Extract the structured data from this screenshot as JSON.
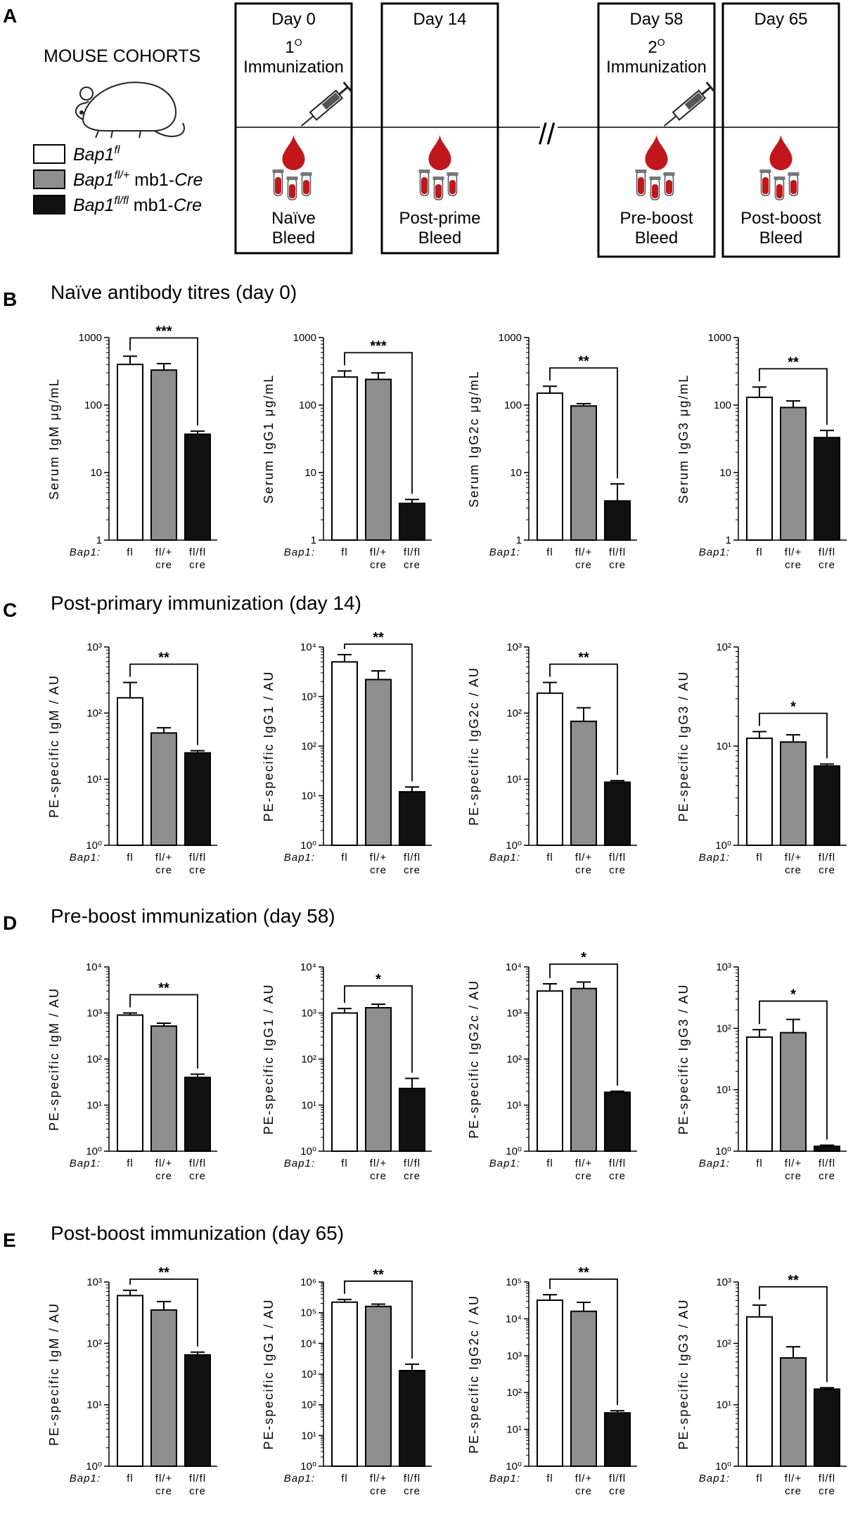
{
  "panel_a": {
    "letter": "A",
    "cohort_title": "MOUSE COHORTS",
    "legend": [
      {
        "base": "Bap1",
        "sup": "fl",
        "rest": "",
        "fill": "#ffffff"
      },
      {
        "base": "Bap1",
        "sup": "fl/+",
        "rest": " mb1-",
        "cre": "Cre",
        "fill": "#8e8e8e"
      },
      {
        "base": "Bap1",
        "sup": "fl/fl",
        "rest": " mb1-",
        "cre": "Cre",
        "fill": "#111111"
      }
    ],
    "timeline_break": "//",
    "timepoints": [
      {
        "day": "Day 0",
        "top_sup_num": "1",
        "top_sup": "O",
        "top_label": "Immunization",
        "bottom": [
          "Naïve",
          "Bleed"
        ],
        "syringe": true
      },
      {
        "day": "Day 14",
        "top_sup_num": "",
        "top_sup": "",
        "top_label": "",
        "bottom": [
          "Post-prime",
          "Bleed"
        ],
        "syringe": false
      },
      {
        "day": "Day 58",
        "top_sup_num": "2",
        "top_sup": "O",
        "top_label": "Immunization",
        "bottom": [
          "Pre-boost",
          "Bleed"
        ],
        "syringe": true
      },
      {
        "day": "Day 65",
        "top_sup_num": "",
        "top_sup": "",
        "top_label": "",
        "bottom": [
          "Post-boost",
          "Bleed"
        ],
        "syringe": false
      }
    ]
  },
  "sections": [
    {
      "letter": "B",
      "title": "Naïve antibody titres (day 0)"
    },
    {
      "letter": "C",
      "title": "Post-primary immunization (day 14)"
    },
    {
      "letter": "D",
      "title": "Pre-boost immunization (day 58)"
    },
    {
      "letter": "E",
      "title": "Post-boost immunization (day 65)"
    }
  ],
  "colors": {
    "fl": "#ffffff",
    "fl_plus_cre": "#8e8e8e",
    "fl_fl_cre": "#111111",
    "blood": "#c0161c"
  },
  "chart_data": [
    {
      "type": "bar",
      "section": "B",
      "ylabel": "Serum IgM μg/mL",
      "ylim": [
        1,
        1000
      ],
      "scale": "log",
      "tick_style": "plain",
      "xprefix": "Bap1:",
      "categories": [
        [
          "fl"
        ],
        [
          "fl/+",
          "cre"
        ],
        [
          "fl/fl",
          "cre"
        ]
      ],
      "values": [
        400,
        330,
        37
      ],
      "errors": [
        530,
        410,
        41
      ],
      "significance": "***"
    },
    {
      "type": "bar",
      "section": "B",
      "ylabel": "Serum IgG1 μg/mL",
      "ylim": [
        1,
        1000
      ],
      "scale": "log",
      "tick_style": "plain",
      "xprefix": "Bap1:",
      "categories": [
        [
          "fl"
        ],
        [
          "fl/+",
          "cre"
        ],
        [
          "fl/fl",
          "cre"
        ]
      ],
      "values": [
        260,
        240,
        3.5
      ],
      "errors": [
        320,
        300,
        4
      ],
      "significance": "***"
    },
    {
      "type": "bar",
      "section": "B",
      "ylabel": "Serum IgG2c μg/mL",
      "ylim": [
        1,
        1000
      ],
      "scale": "log",
      "tick_style": "plain",
      "xprefix": "Bap1:",
      "categories": [
        [
          "fl"
        ],
        [
          "fl/+",
          "cre"
        ],
        [
          "fl/fl",
          "cre"
        ]
      ],
      "values": [
        150,
        97,
        3.8
      ],
      "errors": [
        190,
        105,
        6.8
      ],
      "significance": "**"
    },
    {
      "type": "bar",
      "section": "B",
      "ylabel": "Serum IgG3 μg/mL",
      "ylim": [
        1,
        1000
      ],
      "scale": "log",
      "tick_style": "plain",
      "xprefix": "Bap1:",
      "categories": [
        [
          "fl"
        ],
        [
          "fl/+",
          "cre"
        ],
        [
          "fl/fl",
          "cre"
        ]
      ],
      "values": [
        130,
        92,
        33
      ],
      "errors": [
        185,
        115,
        42
      ],
      "significance": "**"
    },
    {
      "type": "bar",
      "section": "C",
      "ylabel": "PE-specific IgM / AU",
      "ylim": [
        1,
        1000
      ],
      "scale": "log",
      "tick_style": "power",
      "xprefix": "Bap1:",
      "categories": [
        [
          "fl"
        ],
        [
          "fl/+",
          "cre"
        ],
        [
          "fl/fl",
          "cre"
        ]
      ],
      "values": [
        170,
        50,
        25
      ],
      "errors": [
        290,
        60,
        27
      ],
      "significance": "**"
    },
    {
      "type": "bar",
      "section": "C",
      "ylabel": "PE-specific IgG1 / AU",
      "ylim": [
        1,
        10000
      ],
      "scale": "log",
      "tick_style": "power",
      "xprefix": "Bap1:",
      "categories": [
        [
          "fl"
        ],
        [
          "fl/+",
          "cre"
        ],
        [
          "fl/fl",
          "cre"
        ]
      ],
      "values": [
        5000,
        2200,
        12
      ],
      "errors": [
        7000,
        3300,
        15
      ],
      "significance": "**"
    },
    {
      "type": "bar",
      "section": "C",
      "ylabel": "PE-specific IgG2c / AU",
      "ylim": [
        1,
        1000
      ],
      "scale": "log",
      "tick_style": "power",
      "xprefix": "Bap1:",
      "categories": [
        [
          "fl"
        ],
        [
          "fl/+",
          "cre"
        ],
        [
          "fl/fl",
          "cre"
        ]
      ],
      "values": [
        200,
        75,
        9
      ],
      "errors": [
        290,
        120,
        9.5
      ],
      "significance": "**"
    },
    {
      "type": "bar",
      "section": "C",
      "ylabel": "PE-specific IgG3 / AU",
      "ylim": [
        1,
        100
      ],
      "scale": "log",
      "tick_style": "power",
      "xprefix": "Bap1:",
      "categories": [
        [
          "fl"
        ],
        [
          "fl/+",
          "cre"
        ],
        [
          "fl/fl",
          "cre"
        ]
      ],
      "values": [
        12,
        11,
        6.3
      ],
      "errors": [
        14,
        13,
        6.6
      ],
      "significance": "*"
    },
    {
      "type": "bar",
      "section": "D",
      "ylabel": "PE-specific IgM / AU",
      "ylim": [
        1,
        10000
      ],
      "scale": "log",
      "tick_style": "power",
      "xprefix": "Bap1:",
      "categories": [
        [
          "fl"
        ],
        [
          "fl/+",
          "cre"
        ],
        [
          "fl/fl",
          "cre"
        ]
      ],
      "values": [
        900,
        520,
        40
      ],
      "errors": [
        1000,
        600,
        47
      ],
      "significance": "**"
    },
    {
      "type": "bar",
      "section": "D",
      "ylabel": "PE-specific IgG1 / AU",
      "ylim": [
        1,
        10000
      ],
      "scale": "log",
      "tick_style": "power",
      "xprefix": "Bap1:",
      "categories": [
        [
          "fl"
        ],
        [
          "fl/+",
          "cre"
        ],
        [
          "fl/fl",
          "cre"
        ]
      ],
      "values": [
        1000,
        1300,
        23
      ],
      "errors": [
        1250,
        1550,
        38
      ],
      "significance": "*"
    },
    {
      "type": "bar",
      "section": "D",
      "ylabel": "PE-specific IgG2c / AU",
      "ylim": [
        1,
        10000
      ],
      "scale": "log",
      "tick_style": "power",
      "xprefix": "Bap1:",
      "categories": [
        [
          "fl"
        ],
        [
          "fl/+",
          "cre"
        ],
        [
          "fl/fl",
          "cre"
        ]
      ],
      "values": [
        3000,
        3400,
        19
      ],
      "errors": [
        4300,
        4700,
        20
      ],
      "significance": "*"
    },
    {
      "type": "bar",
      "section": "D",
      "ylabel": "PE-specific IgG3 / AU",
      "ylim": [
        1,
        1000
      ],
      "scale": "log",
      "tick_style": "power",
      "xprefix": "Bap1:",
      "categories": [
        [
          "fl"
        ],
        [
          "fl/+",
          "cre"
        ],
        [
          "fl/fl",
          "cre"
        ]
      ],
      "values": [
        72,
        85,
        1.2
      ],
      "errors": [
        95,
        140,
        1.25
      ],
      "significance": "*"
    },
    {
      "type": "bar",
      "section": "E",
      "ylabel": "PE-specific IgM / AU",
      "ylim": [
        1,
        1000
      ],
      "scale": "log",
      "tick_style": "power",
      "xprefix": "Bap1:",
      "categories": [
        [
          "fl"
        ],
        [
          "fl/+",
          "cre"
        ],
        [
          "fl/fl",
          "cre"
        ]
      ],
      "values": [
        600,
        350,
        65
      ],
      "errors": [
        730,
        480,
        72
      ],
      "significance": "**"
    },
    {
      "type": "bar",
      "section": "E",
      "ylabel": "PE-specific IgG1 / AU",
      "ylim": [
        1,
        1000000
      ],
      "scale": "log",
      "tick_style": "power",
      "xprefix": "Bap1:",
      "categories": [
        [
          "fl"
        ],
        [
          "fl/+",
          "cre"
        ],
        [
          "fl/fl",
          "cre"
        ]
      ],
      "values": [
        220000,
        160000,
        1300
      ],
      "errors": [
        270000,
        190000,
        2100
      ],
      "significance": "**"
    },
    {
      "type": "bar",
      "section": "E",
      "ylabel": "PE-specific IgG2c / AU",
      "ylim": [
        1,
        100000
      ],
      "scale": "log",
      "tick_style": "power",
      "xprefix": "Bap1:",
      "categories": [
        [
          "fl"
        ],
        [
          "fl/+",
          "cre"
        ],
        [
          "fl/fl",
          "cre"
        ]
      ],
      "values": [
        32000,
        16000,
        28
      ],
      "errors": [
        45000,
        28000,
        32
      ],
      "significance": "**"
    },
    {
      "type": "bar",
      "section": "E",
      "ylabel": "PE-specific IgG3 / AU",
      "ylim": [
        1,
        1000
      ],
      "scale": "log",
      "tick_style": "power",
      "xprefix": "Bap1:",
      "categories": [
        [
          "fl"
        ],
        [
          "fl/+",
          "cre"
        ],
        [
          "fl/fl",
          "cre"
        ]
      ],
      "values": [
        270,
        58,
        18
      ],
      "errors": [
        420,
        88,
        19
      ],
      "significance": "**"
    }
  ]
}
